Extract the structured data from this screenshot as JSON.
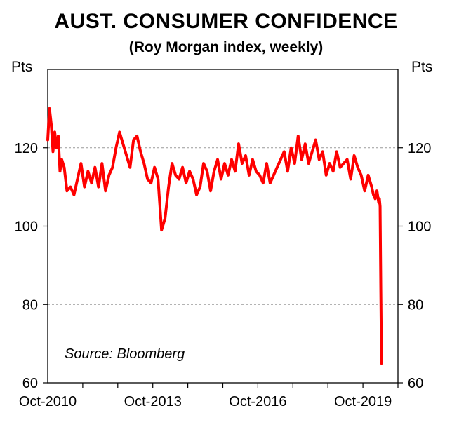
{
  "chart_data": {
    "type": "line",
    "title": "AUST. CONSUMER CONFIDENCE",
    "subtitle": "(Roy Morgan index, weekly)",
    "ylabel_left": "Pts",
    "ylabel_right": "Pts",
    "source": "Source: Bloomberg",
    "ylim": [
      60,
      140
    ],
    "yticks": [
      60,
      80,
      100,
      120
    ],
    "xlim": [
      2010.75,
      2020.75
    ],
    "xticks": [
      {
        "label": "Oct-2010",
        "x": 2010.75
      },
      {
        "label": "Oct-2013",
        "x": 2013.75
      },
      {
        "label": "Oct-2016",
        "x": 2016.75
      },
      {
        "label": "Oct-2019",
        "x": 2019.75
      }
    ],
    "grid": "horizontal dashed at 80, 100, 120",
    "series": [
      {
        "name": "Roy Morgan consumer confidence",
        "color": "#ff0000",
        "x": [
          2010.75,
          2010.8,
          2010.85,
          2010.9,
          2010.95,
          2011.0,
          2011.05,
          2011.1,
          2011.15,
          2011.22,
          2011.3,
          2011.4,
          2011.5,
          2011.6,
          2011.7,
          2011.8,
          2011.9,
          2012.0,
          2012.1,
          2012.2,
          2012.3,
          2012.4,
          2012.5,
          2012.6,
          2012.7,
          2012.8,
          2012.9,
          2013.0,
          2013.1,
          2013.2,
          2013.3,
          2013.4,
          2013.5,
          2013.6,
          2013.7,
          2013.8,
          2013.9,
          2014.0,
          2014.1,
          2014.2,
          2014.3,
          2014.4,
          2014.5,
          2014.6,
          2014.7,
          2014.8,
          2014.9,
          2015.0,
          2015.1,
          2015.2,
          2015.3,
          2015.4,
          2015.5,
          2015.6,
          2015.7,
          2015.8,
          2015.9,
          2016.0,
          2016.1,
          2016.2,
          2016.3,
          2016.4,
          2016.5,
          2016.6,
          2016.7,
          2016.8,
          2016.9,
          2017.0,
          2017.1,
          2017.2,
          2017.3,
          2017.4,
          2017.5,
          2017.6,
          2017.7,
          2017.8,
          2017.9,
          2018.0,
          2018.1,
          2018.2,
          2018.3,
          2018.4,
          2018.5,
          2018.6,
          2018.7,
          2018.8,
          2018.9,
          2019.0,
          2019.1,
          2019.2,
          2019.3,
          2019.4,
          2019.5,
          2019.6,
          2019.7,
          2019.8,
          2019.9,
          2020.0,
          2020.05,
          2020.1,
          2020.15,
          2020.2,
          2020.22,
          2020.24,
          2020.26,
          2020.28
        ],
        "values": [
          122,
          130,
          126,
          119,
          124,
          120,
          123,
          114,
          117,
          115,
          109,
          110,
          108,
          112,
          116,
          110,
          114,
          111,
          115,
          110,
          116,
          109,
          113,
          115,
          120,
          124,
          121,
          118,
          115,
          122,
          123,
          119,
          116,
          112,
          111,
          115,
          112,
          99,
          102,
          110,
          116,
          113,
          112,
          115,
          111,
          114,
          112,
          108,
          110,
          116,
          114,
          109,
          114,
          117,
          112,
          116,
          113,
          117,
          114,
          121,
          116,
          118,
          113,
          117,
          114,
          113,
          111,
          116,
          111,
          113,
          115,
          117,
          119,
          114,
          120,
          116,
          123,
          117,
          121,
          116,
          119,
          122,
          117,
          119,
          113,
          116,
          114,
          119,
          115,
          116,
          117,
          112,
          118,
          115,
          113,
          109,
          113,
          110,
          108,
          107,
          109,
          106,
          107,
          105,
          84,
          65
        ]
      }
    ]
  }
}
